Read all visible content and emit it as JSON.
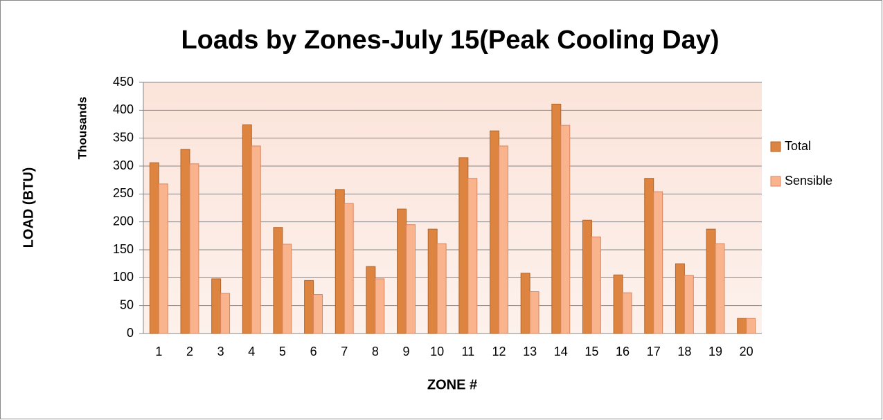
{
  "chart_data": {
    "type": "bar",
    "title": "Loads by Zones-July 15(Peak Cooling Day)",
    "y_label": "LOAD (BTU)",
    "y_unit_label": "Thousands",
    "x_label": "ZONE #",
    "categories": [
      "1",
      "2",
      "3",
      "4",
      "5",
      "6",
      "7",
      "8",
      "9",
      "10",
      "11",
      "12",
      "13",
      "14",
      "15",
      "16",
      "17",
      "18",
      "19",
      "20"
    ],
    "series": [
      {
        "name": "Total",
        "color": "#dd8440",
        "values": [
          306,
          330,
          98,
          374,
          190,
          95,
          258,
          120,
          223,
          187,
          315,
          363,
          108,
          411,
          203,
          105,
          278,
          125,
          187,
          27
        ]
      },
      {
        "name": "Sensible",
        "color": "#f9b38d",
        "values": [
          268,
          304,
          72,
          336,
          160,
          70,
          233,
          98,
          195,
          161,
          278,
          336,
          75,
          373,
          173,
          73,
          254,
          104,
          161,
          27
        ]
      }
    ],
    "ylim": [
      0,
      450
    ],
    "yticks": [
      0,
      50,
      100,
      150,
      200,
      250,
      300,
      350,
      400,
      450
    ],
    "grid": true,
    "legend": "right"
  }
}
